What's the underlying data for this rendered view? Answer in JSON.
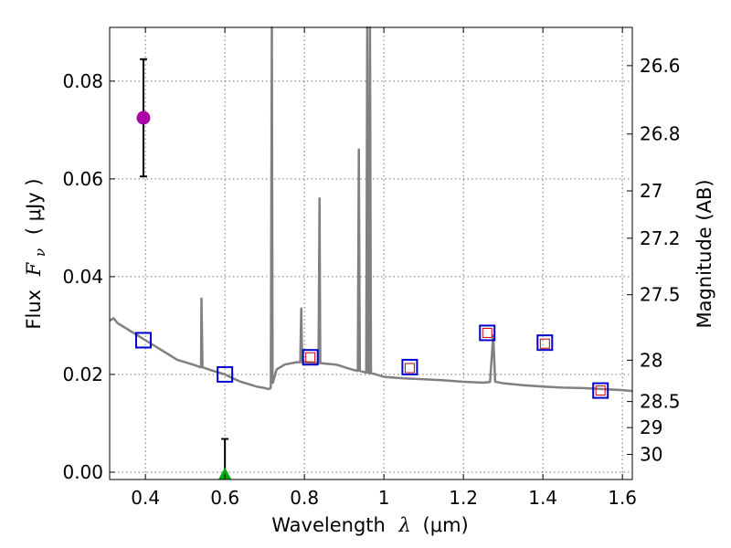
{
  "chart_data": {
    "type": "line",
    "xlabel": "Wavelength",
    "xlabel_symbol": "λ",
    "xlabel_unit": "(μm)",
    "ylabel": "Flux",
    "ylabel_symbol": "F",
    "ylabel_subscript": "ν",
    "ylabel_unit": "( μJy )",
    "y2label": "Magnitude (AB)",
    "xlim": [
      0.31,
      1.625
    ],
    "ylim": [
      -0.0015,
      0.091
    ],
    "x_ticks": [
      0.4,
      0.6,
      0.8,
      1.0,
      1.2,
      1.4,
      1.6
    ],
    "x_tick_labels": [
      "0.4",
      "0.6",
      "0.8",
      "1",
      "1.2",
      "1.4",
      "1.6"
    ],
    "y_ticks": [
      0.0,
      0.02,
      0.04,
      0.06,
      0.08
    ],
    "y_tick_labels": [
      "0.00",
      "0.02",
      "0.04",
      "0.06",
      "0.08"
    ],
    "y2_tick_labels": [
      "26.6",
      "26.8",
      "27",
      "27.2",
      "27.5",
      "28",
      "28.5",
      "29",
      "30"
    ],
    "y2_tick_magnitudes": [
      26.6,
      26.8,
      27.0,
      27.2,
      27.5,
      28.0,
      28.5,
      29.0,
      30.0
    ],
    "grid": true,
    "colors": {
      "spectrum": "#808080",
      "observed_point": "#aa00aa",
      "upper_limit": "#00aa00",
      "model_box": "#0000cc",
      "observed_box": "#cc0000",
      "error_bar": "#000000"
    },
    "series": [
      {
        "kind": "spectrum",
        "x": [
          0.31,
          0.32,
          0.33,
          0.34,
          0.36,
          0.38,
          0.4,
          0.42,
          0.44,
          0.46,
          0.48,
          0.5,
          0.52,
          0.54,
          0.56,
          0.58,
          0.6,
          0.62,
          0.64,
          0.66,
          0.68,
          0.7,
          0.71,
          0.715,
          0.72,
          0.73,
          0.75,
          0.78,
          0.8,
          0.84,
          0.88,
          0.92,
          0.95,
          0.98,
          1.0,
          1.05,
          1.1,
          1.15,
          1.2,
          1.25,
          1.28,
          1.3,
          1.35,
          1.4,
          1.45,
          1.5,
          1.55,
          1.6,
          1.625
        ],
        "y": [
          0.031,
          0.0315,
          0.0305,
          0.03,
          0.029,
          0.028,
          0.027,
          0.026,
          0.025,
          0.024,
          0.023,
          0.0225,
          0.022,
          0.0215,
          0.021,
          0.0205,
          0.02,
          0.0192,
          0.0185,
          0.018,
          0.0175,
          0.0172,
          0.017,
          0.0172,
          0.019,
          0.021,
          0.022,
          0.0225,
          0.0225,
          0.0223,
          0.022,
          0.021,
          0.0205,
          0.02,
          0.0195,
          0.0192,
          0.019,
          0.0188,
          0.0185,
          0.0183,
          0.0185,
          0.0182,
          0.0178,
          0.0175,
          0.0173,
          0.0172,
          0.017,
          0.0168,
          0.0166
        ],
        "emission_lines": [
          {
            "x": 0.541,
            "peak": 0.0355
          },
          {
            "x": 0.718,
            "peak": 0.091
          },
          {
            "x": 0.792,
            "peak": 0.0335
          },
          {
            "x": 0.838,
            "peak": 0.056
          },
          {
            "x": 0.937,
            "peak": 0.066
          },
          {
            "x": 0.958,
            "peak": 0.091
          },
          {
            "x": 0.965,
            "peak": 0.091
          },
          {
            "x": 1.275,
            "peak": 0.028
          }
        ]
      },
      {
        "kind": "model_boxes",
        "x": [
          0.395,
          0.6,
          0.815,
          1.065,
          1.26,
          1.405,
          1.545
        ],
        "y": [
          0.027,
          0.02,
          0.0235,
          0.0215,
          0.0285,
          0.0265,
          0.0167
        ]
      },
      {
        "kind": "observed_boxes",
        "x": [
          0.815,
          1.065,
          1.26,
          1.405,
          1.545
        ],
        "y": [
          0.0235,
          0.0213,
          0.0285,
          0.0263,
          0.0167
        ]
      },
      {
        "kind": "detection",
        "x": [
          0.395
        ],
        "y": [
          0.0725
        ],
        "yerr_low": [
          0.0605
        ],
        "yerr_high": [
          0.0845
        ]
      },
      {
        "kind": "upper_limit",
        "x": [
          0.6
        ],
        "y": [
          -0.0005
        ],
        "yerr_high": [
          0.0068
        ]
      }
    ]
  }
}
